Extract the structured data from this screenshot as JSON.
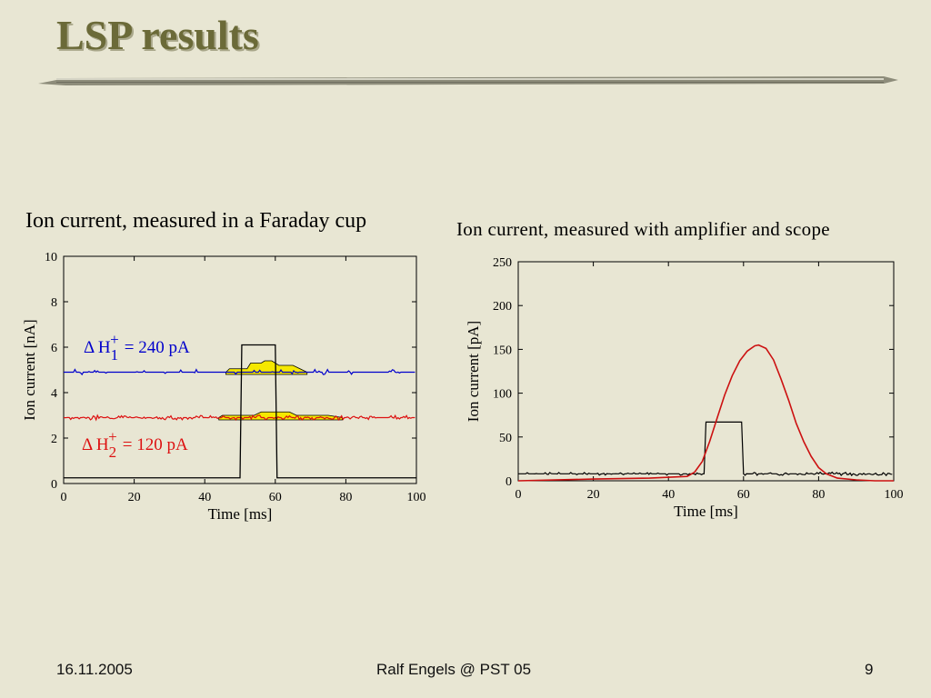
{
  "slide": {
    "title": "LSP results",
    "colors": {
      "background": "#e8e6d3",
      "title": "#6b6a38"
    }
  },
  "footer": {
    "date": "16.11.2005",
    "center": "Ralf Engels @ PST 05",
    "page": "9"
  },
  "chart_data": [
    {
      "type": "line",
      "title": "Ion current, measured in a Faraday cup",
      "xlabel": "Time [ms]",
      "ylabel": "Ion current [nA]",
      "xlim": [
        0,
        100
      ],
      "ylim": [
        0,
        10
      ],
      "xticks": [
        "0",
        "20",
        "40",
        "60",
        "80",
        "100"
      ],
      "yticks": [
        "0",
        "2",
        "4",
        "6",
        "8",
        "10"
      ],
      "grid": false,
      "series": [
        {
          "color": "#000000",
          "x": [
            0,
            50,
            50.5,
            60,
            60.5,
            100
          ],
          "y": [
            0.25,
            0.25,
            6.1,
            6.1,
            0.25,
            0.25
          ]
        },
        {
          "color": "#0000cc",
          "baseline": 4.9,
          "pulse": [
            [
              46,
              4.9
            ],
            [
              47,
              5.05
            ],
            [
              52,
              5.05
            ],
            [
              53,
              5.3
            ],
            [
              56,
              5.3
            ],
            [
              57,
              5.4
            ],
            [
              59,
              5.4
            ],
            [
              61,
              5.2
            ],
            [
              65,
              5.2
            ],
            [
              67,
              5.05
            ],
            [
              69,
              4.9
            ]
          ]
        },
        {
          "color": "#dd1111",
          "baseline": 2.9,
          "pulse": [
            [
              44,
              2.9
            ],
            [
              45,
              3.0
            ],
            [
              54,
              3.0
            ],
            [
              56,
              3.15
            ],
            [
              64,
              3.15
            ],
            [
              66,
              3.0
            ],
            [
              75,
              3.0
            ],
            [
              79,
              2.9
            ]
          ]
        }
      ],
      "annotations": [
        {
          "delta": "Δ",
          "ion": "H",
          "sub": "1",
          "sup": "+",
          "value": "= 240 pA",
          "color": "#0000cc"
        },
        {
          "delta": "Δ",
          "ion": "H",
          "sub": "2",
          "sup": "+",
          "value": "= 120 pA",
          "color": "#dd1111"
        }
      ]
    },
    {
      "type": "line",
      "title": "Ion current, measured with amplifier and scope",
      "xlabel": "Time [ms]",
      "ylabel": "Ion current [pA]",
      "xlim": [
        0,
        100
      ],
      "ylim": [
        0,
        250
      ],
      "xticks": [
        "0",
        "20",
        "40",
        "60",
        "80",
        "100"
      ],
      "yticks": [
        "0",
        "50",
        "100",
        "150",
        "200",
        "250"
      ],
      "grid": false,
      "series": [
        {
          "color": "#000000",
          "x": [
            0,
            49.5,
            50,
            59.5,
            60,
            100
          ],
          "y": [
            8,
            8,
            67,
            67,
            8,
            8
          ]
        },
        {
          "color": "#cc1111",
          "x": [
            0,
            20,
            35,
            45,
            47,
            49,
            51,
            53,
            55,
            57,
            59,
            61,
            63,
            64,
            66,
            68,
            70,
            72,
            74,
            76,
            78,
            80,
            82,
            85,
            90,
            95,
            100
          ],
          "y": [
            0,
            2,
            3,
            5,
            10,
            22,
            45,
            72,
            98,
            120,
            137,
            148,
            154,
            155,
            151,
            138,
            116,
            92,
            66,
            45,
            28,
            15,
            8,
            3,
            1,
            0,
            0
          ]
        }
      ]
    }
  ]
}
